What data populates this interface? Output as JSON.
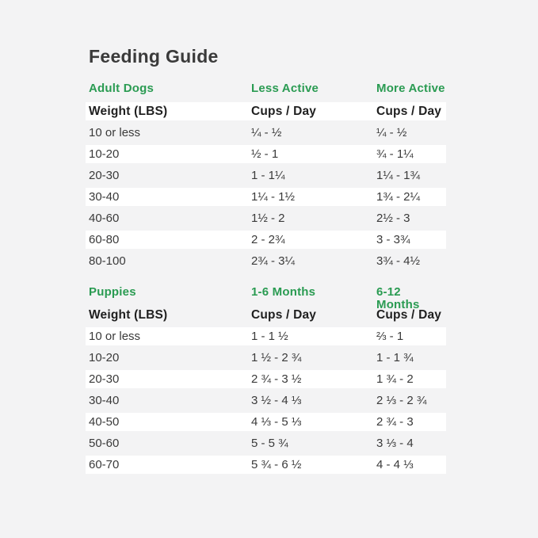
{
  "page": {
    "title": "Feeding Guide"
  },
  "colors": {
    "background": "#f3f3f4",
    "row_stripe": "#ffffff",
    "accent_green": "#2a9b52",
    "title_text": "#3a3a3a",
    "body_text": "#3a3a3a"
  },
  "tables": [
    {
      "section": "adult-dogs",
      "columns": [
        "Adult Dogs",
        "Less Active",
        "More Active"
      ],
      "subheader": [
        "Weight (LBS)",
        "Cups / Day",
        "Cups / Day"
      ],
      "rows": [
        {
          "c1": "10 or less",
          "c2": "¼ - ½",
          "c3": "¼ - ½"
        },
        {
          "c1": "10-20",
          "c2": "½ - 1",
          "c3": "¾ - 1¼"
        },
        {
          "c1": "20-30",
          "c2": "1 - 1¼",
          "c3": "1¼ - 1¾"
        },
        {
          "c1": "30-40",
          "c2": "1¼ - 1½",
          "c3": "1¾ - 2¼"
        },
        {
          "c1": "40-60",
          "c2": "1½ - 2",
          "c3": "2½ - 3"
        },
        {
          "c1": "60-80",
          "c2": "2 - 2¾",
          "c3": "3 - 3¾"
        },
        {
          "c1": "80-100",
          "c2": "2¾ - 3¼",
          "c3": "3¾ - 4½"
        }
      ]
    },
    {
      "section": "puppies",
      "columns": [
        "Puppies",
        "1-6 Months",
        "6-12 Months"
      ],
      "subheader": [
        "Weight (LBS)",
        "Cups / Day",
        "Cups / Day"
      ],
      "rows": [
        {
          "c1": "10 or less",
          "c2": "1 - 1 ½",
          "c3": "⅔ - 1"
        },
        {
          "c1": "10-20",
          "c2": "1 ½ - 2 ¾",
          "c3": "1 - 1 ¾"
        },
        {
          "c1": "20-30",
          "c2": "2 ¾ - 3 ½",
          "c3": "1 ¾ - 2"
        },
        {
          "c1": "30-40",
          "c2": "3 ½ - 4 ⅓",
          "c3": "2 ⅓ - 2 ¾"
        },
        {
          "c1": "40-50",
          "c2": "4 ⅓ - 5 ⅓",
          "c3": "2 ¾ - 3"
        },
        {
          "c1": "50-60",
          "c2": "5 - 5 ¾",
          "c3": "3 ⅓ - 4"
        },
        {
          "c1": "60-70",
          "c2": "5 ¾ - 6 ½",
          "c3": "4 - 4 ⅓"
        }
      ]
    }
  ],
  "chart_data": [
    {
      "type": "table",
      "title": "Adult Dogs",
      "columns": [
        "Weight (LBS)",
        "Less Active Cups / Day",
        "More Active Cups / Day"
      ],
      "rows": [
        [
          "10 or less",
          "¼ - ½",
          "¼ - ½"
        ],
        [
          "10-20",
          "½ - 1",
          "¾ - 1¼"
        ],
        [
          "20-30",
          "1 - 1¼",
          "1¼ - 1¾"
        ],
        [
          "30-40",
          "1¼ - 1½",
          "1¾ - 2¼"
        ],
        [
          "40-60",
          "1½ - 2",
          "2½ - 3"
        ],
        [
          "60-80",
          "2 - 2¾",
          "3 - 3¾"
        ],
        [
          "80-100",
          "2¾ - 3¼",
          "3¾ - 4½"
        ]
      ]
    },
    {
      "type": "table",
      "title": "Puppies",
      "columns": [
        "Weight (LBS)",
        "1-6 Months Cups / Day",
        "6-12 Months Cups / Day"
      ],
      "rows": [
        [
          "10 or less",
          "1 - 1 ½",
          "⅔ - 1"
        ],
        [
          "10-20",
          "1 ½ - 2 ¾",
          "1 - 1 ¾"
        ],
        [
          "20-30",
          "2 ¾ - 3 ½",
          "1 ¾ - 2"
        ],
        [
          "30-40",
          "3 ½ - 4 ⅓",
          "2 ⅓ - 2 ¾"
        ],
        [
          "40-50",
          "4 ⅓ - 5 ⅓",
          "2 ¾ - 3"
        ],
        [
          "50-60",
          "5 - 5 ¾",
          "3 ⅓ - 4"
        ],
        [
          "60-70",
          "5 ¾ - 6 ½",
          "4 - 4 ⅓"
        ]
      ]
    }
  ]
}
